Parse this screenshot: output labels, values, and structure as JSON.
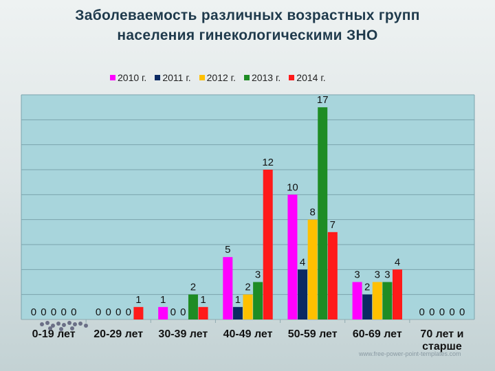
{
  "slide": {
    "title_line1": "Заболеваемость различных возрастных групп",
    "title_line2": "населения гинекологическими ЗНО",
    "footer_url": "www.free-power-point-templates.com"
  },
  "chart_data": {
    "type": "bar",
    "categories": [
      "0-19 лет",
      "20-29 лет",
      "30-39 лет",
      "40-49 лет",
      "50-59 лет",
      "60-69 лет",
      "70 лет и старше"
    ],
    "series": [
      {
        "name": "2010 г.",
        "color": "#ff00ff",
        "values": [
          0,
          0,
          1,
          5,
          10,
          3,
          0
        ]
      },
      {
        "name": "2011 г.",
        "color": "#0b2a63",
        "values": [
          0,
          0,
          0,
          1,
          4,
          2,
          0
        ]
      },
      {
        "name": "2012 г.",
        "color": "#ffc000",
        "values": [
          0,
          0,
          0,
          2,
          8,
          3,
          0
        ]
      },
      {
        "name": "2013 г.",
        "color": "#1e8c24",
        "values": [
          0,
          0,
          2,
          3,
          17,
          3,
          0
        ]
      },
      {
        "name": "2014 г.",
        "color": "#ff1a1a",
        "values": [
          0,
          1,
          1,
          12,
          7,
          4,
          0
        ]
      }
    ],
    "ylim": [
      0,
      18
    ],
    "grid": true,
    "legend_position": "top",
    "plot_background": "#a8d5dc",
    "gridline_color": "#7aa3ad"
  }
}
